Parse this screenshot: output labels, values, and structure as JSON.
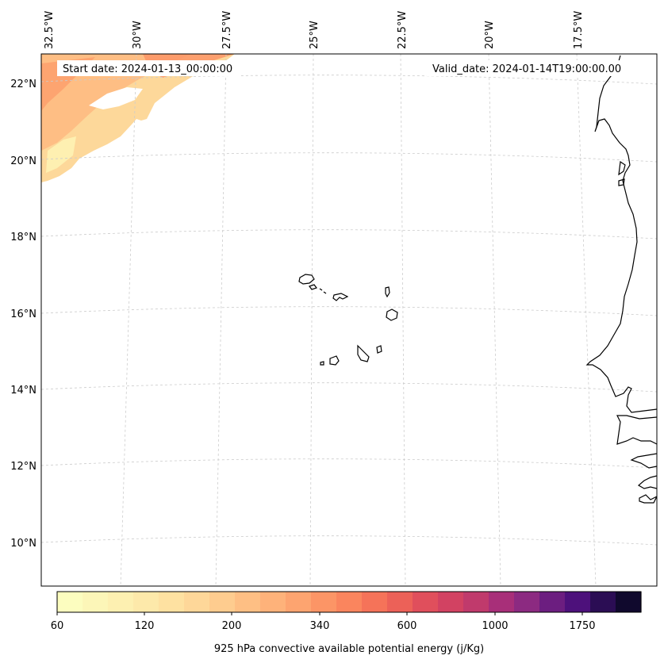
{
  "map": {
    "start_date": "Start date: 2024-01-13_00:00:00",
    "valid_date": "Valid_date: 2024-01-14T19:00:00.00",
    "lon_labels": [
      "32.5°W",
      "30°W",
      "27.5°W",
      "25°W",
      "22.5°W",
      "20°W",
      "17.5°W"
    ],
    "lat_labels": [
      "22°N",
      "20°N",
      "18°N",
      "16°N",
      "14°N",
      "12°N",
      "10°N"
    ],
    "region": "Cape Verde islands and West African coast"
  },
  "colorbar": {
    "title": "925 hPa convective available potential energy (j/Kg)",
    "tick_labels": [
      "60",
      "120",
      "200",
      "340",
      "600",
      "1000",
      "1750"
    ],
    "colors": [
      "#fcfdbf",
      "#fcf6b8",
      "#fdf0b1",
      "#fde9aa",
      "#fee1a1",
      "#fed799",
      "#fecc8f",
      "#febf84",
      "#feb27a",
      "#fda470",
      "#fc9566",
      "#fa855e",
      "#f57359",
      "#ec6158",
      "#e04f5c",
      "#d24262",
      "#c03a6c",
      "#a82f79",
      "#8c2a81",
      "#6c1e80",
      "#4d117b",
      "#2b0d54",
      "#10092d"
    ]
  },
  "style": {
    "coastline": "#000000",
    "gridline": "#cccccc",
    "cape_low": "#fde9aa",
    "cape_mid": "#feb27a",
    "cape_high": "#fc9566"
  }
}
